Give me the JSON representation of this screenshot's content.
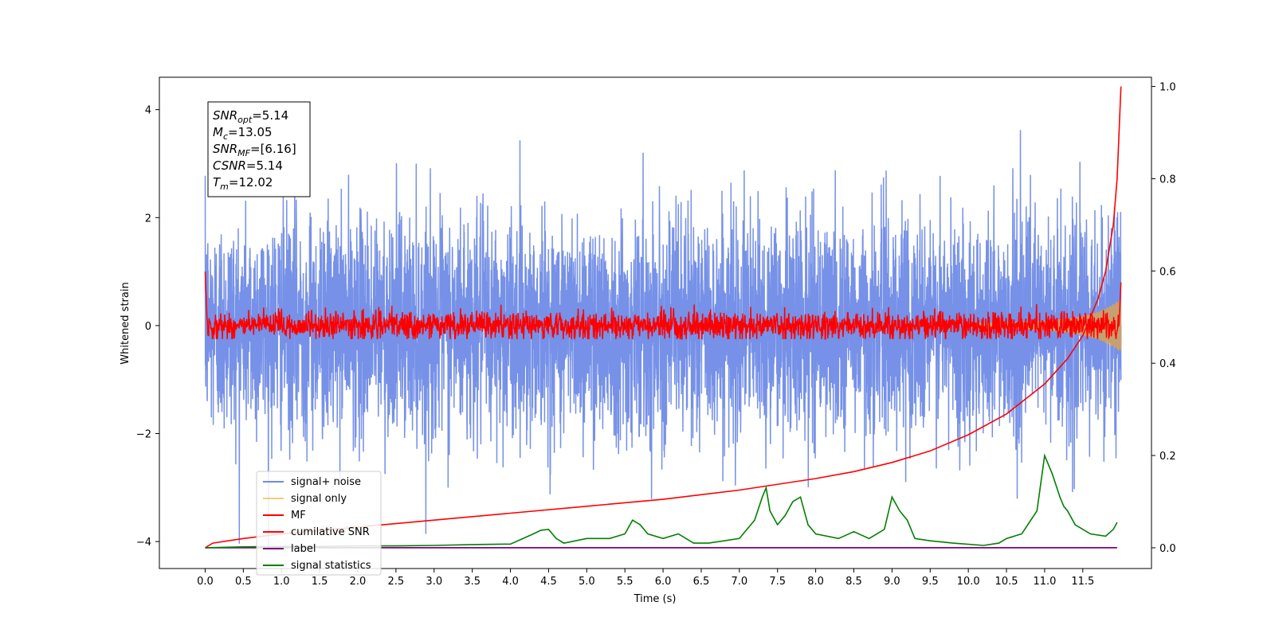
{
  "chart_data": {
    "type": "line",
    "xlabel": "Time (s)",
    "ylabel": "Whitened strain",
    "xlim": [
      -0.6,
      12.4
    ],
    "ylim": [
      -4.5,
      4.6
    ],
    "y2lim": [
      -0.045,
      1.02
    ],
    "x_ticks": [
      0.0,
      0.5,
      1.0,
      1.5,
      2.0,
      2.5,
      3.0,
      3.5,
      4.0,
      4.5,
      5.0,
      5.5,
      6.0,
      6.5,
      7.0,
      7.5,
      8.0,
      8.5,
      9.0,
      9.5,
      10.0,
      10.5,
      11.0,
      11.5
    ],
    "x_tick_labels": [
      "0.0",
      "0.5",
      "1.0",
      "1.5",
      "2.0",
      "2.5",
      "3.0",
      "3.5",
      "4.0",
      "4.5",
      "5.0",
      "5.5",
      "6.0",
      "6.5",
      "7.0",
      "7.5",
      "8.0",
      "8.5",
      "9.0",
      "9.5",
      "10.0",
      "10.5",
      "11.0",
      "11.5"
    ],
    "y_ticks": [
      4,
      2,
      0,
      -2,
      -4
    ],
    "y_tick_labels": [
      "4",
      "2",
      "0",
      "−2",
      "−4"
    ],
    "y2_ticks": [
      1.0,
      0.8,
      0.6,
      0.4,
      0.2,
      0.0
    ],
    "y2_tick_labels": [
      "1.0",
      "0.8",
      "0.6",
      "0.4",
      "0.2",
      "0.0"
    ],
    "grid": false,
    "legend_position": "lower-left",
    "legend": [
      {
        "label": "signal+ noise",
        "color": "#6f8be6"
      },
      {
        "label": "signal only",
        "color": "#f5c97a"
      },
      {
        "label": "MF",
        "color": "#ff0000"
      },
      {
        "label": "cumilative SNR",
        "color": "#ff0000"
      },
      {
        "label": "label",
        "color": "#800080"
      },
      {
        "label": "signal statistics",
        "color": "#008000"
      }
    ],
    "annotations": [
      {
        "base": "SNR",
        "sub": "opt",
        "value": "=5.14"
      },
      {
        "base": "M",
        "sub": "c",
        "value": "=13.05"
      },
      {
        "base": "SNR",
        "sub": "MF",
        "value": "=[6.16]"
      },
      {
        "base": "CSNR",
        "sub": "",
        "value": "=5.14"
      },
      {
        "base": "T",
        "sub": "m",
        "value": "=12.02"
      }
    ],
    "series": [
      {
        "name": "signal+ noise",
        "axis": "left",
        "color": "#6f8be6",
        "t_start": 0.0,
        "t_end": 12.0,
        "noise_sd": 1.0,
        "approx_range": [
          -4.1,
          4.2
        ]
      },
      {
        "name": "signal only",
        "axis": "left",
        "color": "#f5c97a",
        "envelope_x": [
          10.0,
          10.5,
          11.0,
          11.3,
          11.5,
          11.7,
          11.85,
          11.95,
          12.0
        ],
        "envelope_amp": [
          0.04,
          0.06,
          0.09,
          0.13,
          0.18,
          0.26,
          0.36,
          0.45,
          0.5
        ]
      },
      {
        "name": "MF",
        "axis": "left",
        "color": "#ff0000",
        "t_start": 0.0,
        "t_end": 12.0,
        "noise_sd": 0.13,
        "approx_range": [
          -0.25,
          1.0
        ],
        "end_value": 0.8
      },
      {
        "name": "cumilative SNR",
        "axis": "right",
        "color": "#ff0000",
        "x": [
          0.0,
          0.1,
          0.5,
          1.0,
          2.0,
          3.0,
          4.0,
          5.0,
          6.0,
          7.0,
          8.0,
          8.5,
          9.0,
          9.5,
          10.0,
          10.5,
          11.0,
          11.3,
          11.5,
          11.7,
          11.8,
          11.9,
          11.95,
          12.0
        ],
        "y": [
          0.0,
          0.01,
          0.02,
          0.03,
          0.045,
          0.06,
          0.075,
          0.09,
          0.105,
          0.125,
          0.15,
          0.165,
          0.185,
          0.21,
          0.245,
          0.29,
          0.355,
          0.41,
          0.46,
          0.54,
          0.6,
          0.7,
          0.8,
          1.0
        ]
      },
      {
        "name": "label",
        "axis": "right",
        "color": "#800080",
        "x": [
          0.0,
          11.95
        ],
        "y": [
          0.0,
          0.0
        ]
      },
      {
        "name": "signal statistics",
        "axis": "right",
        "color": "#008000",
        "x": [
          0.0,
          0.5,
          1.0,
          1.5,
          2.0,
          2.5,
          3.0,
          3.5,
          4.0,
          4.3,
          4.4,
          4.5,
          4.6,
          4.7,
          5.0,
          5.3,
          5.5,
          5.6,
          5.7,
          5.8,
          6.0,
          6.2,
          6.4,
          6.6,
          7.0,
          7.2,
          7.3,
          7.35,
          7.4,
          7.5,
          7.6,
          7.7,
          7.8,
          7.9,
          8.0,
          8.3,
          8.5,
          8.7,
          8.9,
          9.0,
          9.1,
          9.2,
          9.3,
          9.5,
          9.8,
          10.2,
          10.4,
          10.5,
          10.7,
          10.9,
          11.0,
          11.1,
          11.2,
          11.25,
          11.3,
          11.4,
          11.6,
          11.8,
          11.9,
          11.95
        ],
        "y": [
          0.0,
          0.002,
          0.003,
          0.003,
          0.004,
          0.004,
          0.005,
          0.007,
          0.008,
          0.03,
          0.038,
          0.04,
          0.02,
          0.01,
          0.02,
          0.02,
          0.03,
          0.06,
          0.05,
          0.03,
          0.02,
          0.03,
          0.01,
          0.01,
          0.02,
          0.06,
          0.11,
          0.13,
          0.08,
          0.05,
          0.07,
          0.1,
          0.11,
          0.05,
          0.03,
          0.02,
          0.035,
          0.02,
          0.04,
          0.11,
          0.08,
          0.06,
          0.02,
          0.015,
          0.01,
          0.005,
          0.01,
          0.02,
          0.03,
          0.08,
          0.2,
          0.16,
          0.11,
          0.09,
          0.08,
          0.05,
          0.03,
          0.025,
          0.04,
          0.055
        ]
      }
    ]
  }
}
